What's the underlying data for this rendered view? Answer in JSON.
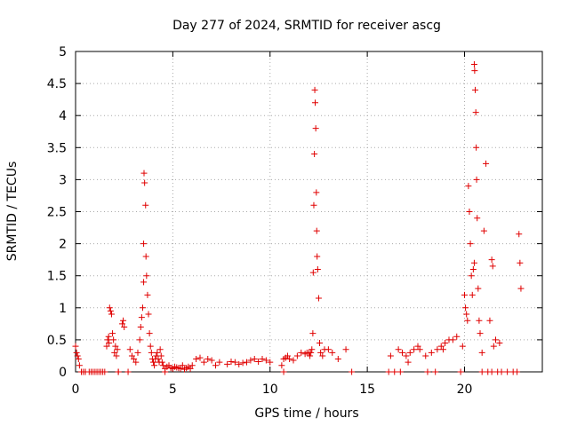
{
  "chart_data": {
    "type": "scatter",
    "title": "Day 277 of 2024, SRMTID for receiver ascg",
    "xlabel": "GPS time / hours",
    "ylabel": "SRMTID / TECUs",
    "xlim": [
      0,
      24
    ],
    "ylim": [
      0,
      5
    ],
    "xticks": [
      0,
      5,
      10,
      15,
      20
    ],
    "xtick_labels": [
      "0",
      "5",
      "10",
      "15",
      "20"
    ],
    "yticks": [
      0,
      0.5,
      1,
      1.5,
      2,
      2.5,
      3,
      3.5,
      4,
      4.5,
      5
    ],
    "ytick_labels": [
      "0",
      "0.5",
      "1",
      "1.5",
      "2",
      "2.5",
      "3",
      "3.5",
      "4",
      "4.5",
      "5"
    ],
    "grid": true,
    "marker": "+",
    "series": [
      {
        "name": "SRMTID",
        "color": "#e00000",
        "x": [
          0.0,
          0.05,
          0.1,
          0.15,
          0.2,
          0.3,
          0.4,
          0.5,
          0.8,
          1.0,
          1.2,
          1.4,
          1.6,
          1.65,
          1.7,
          1.72,
          1.75,
          1.8,
          1.85,
          1.9,
          1.95,
          2.0,
          2.05,
          2.1,
          2.15,
          2.2,
          2.4,
          2.45,
          2.5,
          2.8,
          2.9,
          3.0,
          3.1,
          3.2,
          3.3,
          3.35,
          3.4,
          3.45,
          3.5,
          3.5,
          3.52,
          3.55,
          3.6,
          3.62,
          3.65,
          3.7,
          3.75,
          3.8,
          3.85,
          3.9,
          3.95,
          4.0,
          4.05,
          4.1,
          4.15,
          4.2,
          4.25,
          4.3,
          4.35,
          4.4,
          4.45,
          4.5,
          4.6,
          4.7,
          4.8,
          4.9,
          5.0,
          5.1,
          5.2,
          5.3,
          5.4,
          5.5,
          5.6,
          5.7,
          5.8,
          5.9,
          6.0,
          6.2,
          6.4,
          6.6,
          6.8,
          7.0,
          7.2,
          7.4,
          7.8,
          8.0,
          8.2,
          8.4,
          8.6,
          8.8,
          9.0,
          9.2,
          9.4,
          9.6,
          9.8,
          10.0,
          10.6,
          10.7,
          10.8,
          10.9,
          11.0,
          11.2,
          11.4,
          11.6,
          11.8,
          11.9,
          12.0,
          12.05,
          12.1,
          12.15,
          12.2,
          12.22,
          12.25,
          12.28,
          12.3,
          12.32,
          12.35,
          12.38,
          12.4,
          12.42,
          12.45,
          12.5,
          12.55,
          12.6,
          12.7,
          12.8,
          13.0,
          13.2,
          13.5,
          13.9,
          16.2,
          16.6,
          16.8,
          17.0,
          17.1,
          17.2,
          17.4,
          17.6,
          17.7,
          18.0,
          18.3,
          18.6,
          18.8,
          18.9,
          19.0,
          19.2,
          19.4,
          19.6,
          19.9,
          20.0,
          20.05,
          20.1,
          20.15,
          20.2,
          20.25,
          20.3,
          20.35,
          20.4,
          20.45,
          20.5,
          20.5,
          20.52,
          20.55,
          20.58,
          20.6,
          20.62,
          20.65,
          20.7,
          20.75,
          20.8,
          20.9,
          21.0,
          21.1,
          21.3,
          21.4,
          21.45,
          21.5,
          21.6,
          21.8,
          22.8,
          22.85,
          22.9
        ],
        "y": [
          0.4,
          0.3,
          0.25,
          0.2,
          0.1,
          0.0,
          0.0,
          0.0,
          0.0,
          0.0,
          0.0,
          0.0,
          0.4,
          0.5,
          0.55,
          0.45,
          1.0,
          0.95,
          0.9,
          0.6,
          0.5,
          0.3,
          0.4,
          0.25,
          0.35,
          0.0,
          0.75,
          0.8,
          0.7,
          0.35,
          0.25,
          0.2,
          0.15,
          0.3,
          0.5,
          0.7,
          0.85,
          1.0,
          1.4,
          2.0,
          3.1,
          2.95,
          2.6,
          1.8,
          1.5,
          1.2,
          0.9,
          0.6,
          0.4,
          0.3,
          0.2,
          0.15,
          0.1,
          0.2,
          0.25,
          0.3,
          0.2,
          0.15,
          0.35,
          0.25,
          0.15,
          0.1,
          0.05,
          0.08,
          0.1,
          0.06,
          0.05,
          0.08,
          0.07,
          0.06,
          0.05,
          0.1,
          0.04,
          0.06,
          0.08,
          0.05,
          0.1,
          0.2,
          0.22,
          0.15,
          0.2,
          0.18,
          0.1,
          0.15,
          0.12,
          0.16,
          0.15,
          0.12,
          0.14,
          0.15,
          0.18,
          0.2,
          0.16,
          0.2,
          0.18,
          0.15,
          0.1,
          0.2,
          0.22,
          0.25,
          0.2,
          0.18,
          0.25,
          0.3,
          0.28,
          0.3,
          0.3,
          0.25,
          0.3,
          0.35,
          0.6,
          1.55,
          2.6,
          3.4,
          4.4,
          4.2,
          3.8,
          2.8,
          2.2,
          1.8,
          1.6,
          1.15,
          0.45,
          0.3,
          0.25,
          0.35,
          0.35,
          0.3,
          0.2,
          0.35,
          0.25,
          0.35,
          0.3,
          0.25,
          0.15,
          0.3,
          0.35,
          0.4,
          0.35,
          0.25,
          0.3,
          0.35,
          0.4,
          0.35,
          0.45,
          0.5,
          0.5,
          0.55,
          0.4,
          1.2,
          1.0,
          0.9,
          0.8,
          2.9,
          2.5,
          2.0,
          1.5,
          1.2,
          1.6,
          1.7,
          4.8,
          4.7,
          4.4,
          4.05,
          3.5,
          3.0,
          2.4,
          1.3,
          0.8,
          0.6,
          0.3,
          2.2,
          3.25,
          0.8,
          1.75,
          1.65,
          0.4,
          0.5,
          0.45,
          2.15,
          1.7,
          1.3
        ]
      },
      {
        "name": "zero-line",
        "color": "#e00000",
        "x": [
          0.3,
          0.5,
          0.7,
          0.9,
          1.1,
          1.3,
          1.5,
          2.2,
          2.7,
          4.6,
          10.7,
          14.2,
          16.1,
          16.4,
          16.7,
          18.1,
          18.5,
          19.8,
          20.9,
          21.2,
          21.4,
          21.7,
          21.9,
          22.2,
          22.5,
          22.7
        ],
        "y": [
          0,
          0,
          0,
          0,
          0,
          0,
          0,
          0,
          0,
          0,
          0,
          0,
          0,
          0,
          0,
          0,
          0,
          0,
          0,
          0,
          0,
          0,
          0,
          0,
          0,
          0
        ]
      }
    ]
  }
}
